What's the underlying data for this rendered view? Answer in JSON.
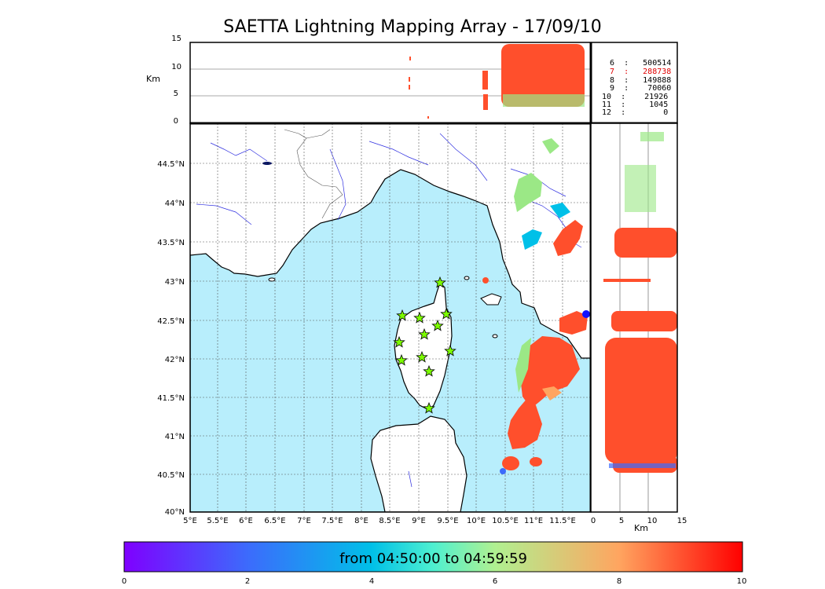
{
  "title": "SAETTA Lightning Mapping Array - 17/09/10",
  "altitude_panel": {
    "ylabel": "Km",
    "yticks": [
      "15",
      "10",
      "5",
      "0"
    ]
  },
  "lon_ticks": [
    "5°E",
    "5.5°E",
    "6°E",
    "6.5°E",
    "7°E",
    "7.5°E",
    "8°E",
    "8.5°E",
    "9°E",
    "9.5°E",
    "10°E",
    "10.5°E",
    "11°E",
    "11.5°E"
  ],
  "lat_ticks": [
    "44.5°N",
    "44°N",
    "43.5°N",
    "43°N",
    "42.5°N",
    "42°N",
    "41.5°N",
    "41°N",
    "40.5°N",
    "40°N"
  ],
  "side_panel": {
    "xlabel": "Km",
    "xticks": [
      "0",
      "5",
      "10",
      "15"
    ]
  },
  "stats": [
    {
      "level": "6",
      "count": "500514",
      "color": "#000000"
    },
    {
      "level": "7",
      "count": "288738",
      "color": "#e00000"
    },
    {
      "level": "8",
      "count": "149888",
      "color": "#000000"
    },
    {
      "level": "9",
      "count": "70060",
      "color": "#000000"
    },
    {
      "level": "10",
      "count": "21926",
      "color": "#000000"
    },
    {
      "level": "11",
      "count": "1045",
      "color": "#000000"
    },
    {
      "level": "12",
      "count": "0",
      "color": "#000000"
    }
  ],
  "colorbar": {
    "label": "from 04:50:00 to 04:59:59",
    "ticks": [
      "0",
      "2",
      "4",
      "6",
      "8",
      "10"
    ]
  },
  "colors": {
    "sea": "#b8eefc",
    "strike": "#ff4f2c",
    "station": "#7cfc00"
  }
}
